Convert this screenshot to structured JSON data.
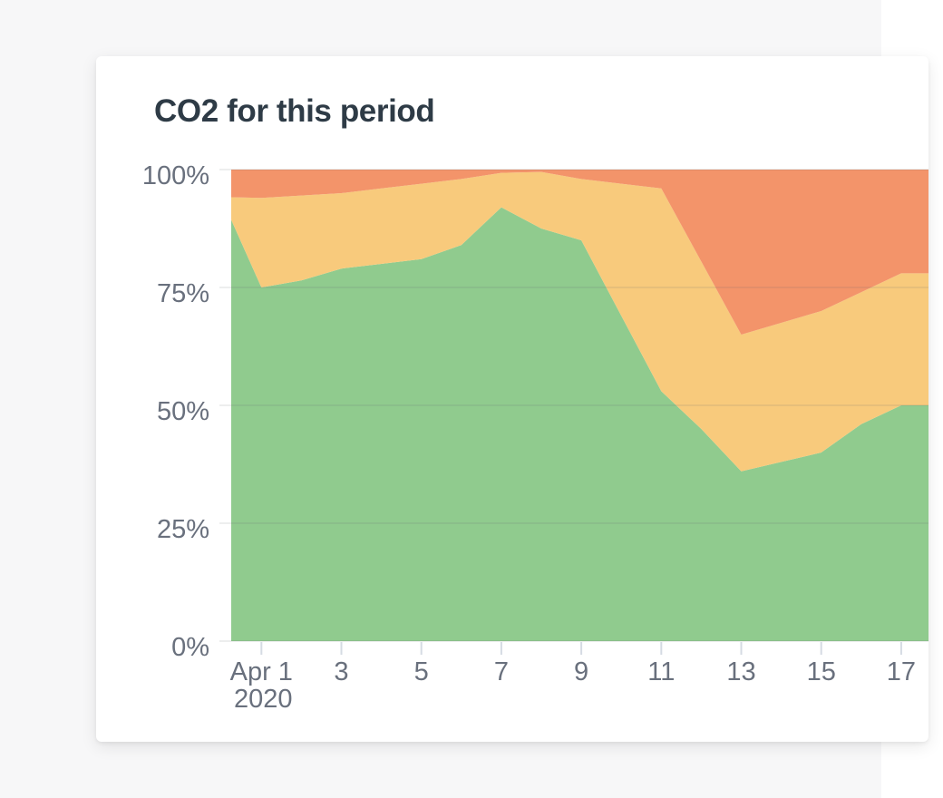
{
  "page": {
    "background_color": "#ffffff",
    "panel_color": "#f7f7f8"
  },
  "card": {
    "title": "CO2 for this period",
    "title_color": "#2e3b46",
    "background_color": "#ffffff"
  },
  "chart_data": {
    "type": "area",
    "stacked": true,
    "stacking": "percent",
    "title": "CO2 for this period",
    "grid": true,
    "legend": "none",
    "ylim": [
      0,
      100
    ],
    "y_tick_values": [
      0,
      25,
      50,
      75,
      100
    ],
    "y_tick_labels": [
      "0%",
      "25%",
      "50%",
      "75%",
      "100%"
    ],
    "categories": [
      "Mar 31",
      "Apr 1",
      "Apr 2",
      "Apr 3",
      "Apr 4",
      "Apr 5",
      "Apr 6",
      "Apr 7",
      "Apr 8",
      "Apr 9",
      "Apr 10",
      "Apr 11",
      "Apr 12",
      "Apr 13",
      "Apr 14",
      "Apr 15",
      "Apr 16",
      "Apr 17",
      "Apr 18"
    ],
    "x_ticks": [
      {
        "category": "Apr 1",
        "label": "Apr 1",
        "sublabel": "2020"
      },
      {
        "category": "Apr 3",
        "label": "3"
      },
      {
        "category": "Apr 5",
        "label": "5"
      },
      {
        "category": "Apr 7",
        "label": "7"
      },
      {
        "category": "Apr 9",
        "label": "9"
      },
      {
        "category": "Apr 11",
        "label": "11"
      },
      {
        "category": "Apr 13",
        "label": "13"
      },
      {
        "category": "Apr 15",
        "label": "15"
      },
      {
        "category": "Apr 17",
        "label": "17"
      }
    ],
    "series": [
      {
        "name": "green-band",
        "color": "#90cb8e",
        "values": [
          94,
          75,
          76.5,
          79,
          80,
          81,
          84,
          92,
          87.5,
          85,
          69,
          53,
          45,
          36,
          38,
          40,
          46,
          50,
          50
        ]
      },
      {
        "name": "yellow-band",
        "color": "#f8ca7c",
        "values": [
          0.2,
          19,
          18,
          16,
          16,
          16,
          14,
          7.3,
          12,
          13,
          28,
          43,
          35.5,
          29,
          29.5,
          30,
          28,
          28,
          28
        ]
      },
      {
        "name": "orange-band",
        "color": "#f3946a",
        "values": [
          5.8,
          6,
          5.5,
          5,
          4,
          3,
          2,
          0.7,
          0.5,
          2,
          3,
          4,
          19.5,
          35,
          32.5,
          30,
          26,
          22,
          22
        ]
      }
    ],
    "axis_text_color": "#69707d",
    "gridline_color": "#5b6269",
    "tick_mark_color": "#d5dbe3"
  }
}
